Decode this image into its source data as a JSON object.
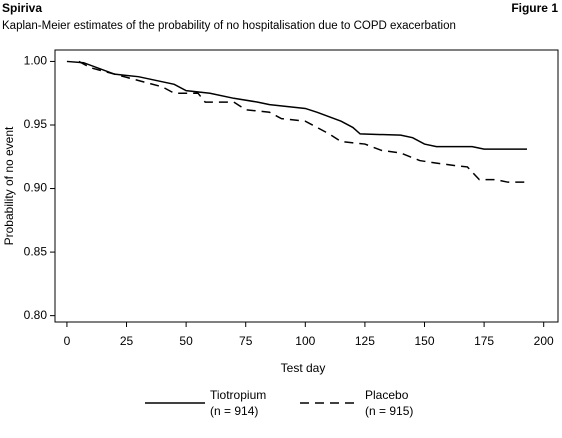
{
  "header": {
    "title": "Spiriva",
    "figure": "Figure 1"
  },
  "chart_data": {
    "type": "line",
    "title": "Kaplan-Meier estimates of the probability of no hospitalisation due to COPD exacerbation",
    "x_label": "Test day",
    "y_label": "Probability of no event",
    "xlim": [
      -5,
      206
    ],
    "xticks": [
      0,
      25,
      50,
      75,
      100,
      125,
      150,
      175,
      200
    ],
    "ylim": [
      0.795,
      1.009
    ],
    "yticks": [
      {
        "value": 0.8,
        "label": "0.80"
      },
      0.85,
      {
        "value": 0.9,
        "label": "0.90"
      },
      0.95,
      {
        "value": 1,
        "label": "1.00"
      }
    ],
    "series": [
      {
        "name": "Tiotropium",
        "count_label": "(n = 914)",
        "color": "#000000",
        "dash": "solid",
        "x": [
          0,
          7,
          20,
          30,
          45,
          50,
          60,
          70,
          80,
          85,
          100,
          105,
          115,
          120,
          123,
          140,
          145,
          150,
          155,
          170,
          175,
          193
        ],
        "values": [
          1.0,
          0.999,
          0.99,
          0.988,
          0.982,
          0.977,
          0.975,
          0.971,
          0.968,
          0.966,
          0.963,
          0.96,
          0.953,
          0.948,
          0.943,
          0.942,
          0.94,
          0.935,
          0.933,
          0.933,
          0.931,
          0.931
        ]
      },
      {
        "name": "Placebo",
        "count_label": "(n = 915)",
        "color": "#000000",
        "dash": "dashed",
        "x": [
          5,
          10,
          20,
          30,
          40,
          45,
          55,
          58,
          70,
          75,
          85,
          90,
          100,
          105,
          110,
          115,
          125,
          132,
          140,
          148,
          155,
          163,
          168,
          170,
          173,
          180,
          185,
          193
        ],
        "values": [
          1.0,
          0.995,
          0.99,
          0.985,
          0.98,
          0.975,
          0.975,
          0.968,
          0.968,
          0.962,
          0.96,
          0.955,
          0.953,
          0.948,
          0.943,
          0.937,
          0.935,
          0.93,
          0.928,
          0.922,
          0.92,
          0.918,
          0.917,
          0.913,
          0.907,
          0.907,
          0.905,
          0.905
        ]
      }
    ]
  }
}
